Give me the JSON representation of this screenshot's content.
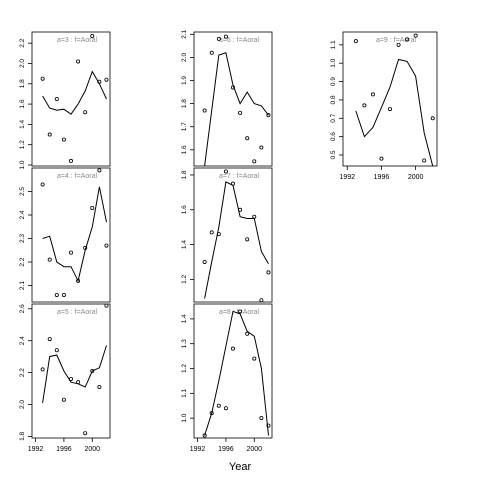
{
  "chart_data": {
    "type": "scatter",
    "xlabel": "Year",
    "x_ticks": [
      "1992",
      "1996",
      "2000"
    ],
    "xlim": [
      1991.5,
      2002.5
    ],
    "panels": [
      {
        "label": "a=3 : f=Aoral",
        "yticks": [
          "1.0",
          "1.2",
          "1.4",
          "1.6",
          "1.8",
          "2.0",
          "2.2"
        ],
        "ylim": [
          0.99,
          2.31
        ],
        "points": [
          [
            1993,
            1.85
          ],
          [
            1994,
            1.3
          ],
          [
            1995,
            1.65
          ],
          [
            1996,
            1.25
          ],
          [
            1997,
            1.04
          ],
          [
            1998,
            2.02
          ],
          [
            1999,
            1.52
          ],
          [
            2000,
            2.27
          ],
          [
            2001,
            1.82
          ],
          [
            2002,
            1.84
          ]
        ],
        "fit": [
          [
            1993,
            1.68
          ],
          [
            1994,
            1.56
          ],
          [
            1995,
            1.54
          ],
          [
            1996,
            1.55
          ],
          [
            1997,
            1.5
          ],
          [
            1998,
            1.6
          ],
          [
            1999,
            1.73
          ],
          [
            2000,
            1.92
          ],
          [
            2001,
            1.8
          ],
          [
            2002,
            1.65
          ]
        ]
      },
      {
        "label": "a=4 : f=Aoral",
        "yticks": [
          "2.1",
          "2.2",
          "2.3",
          "2.4",
          "2.5"
        ],
        "ylim": [
          2.03,
          2.6
        ],
        "points": [
          [
            1993,
            2.53
          ],
          [
            1994,
            2.21
          ],
          [
            1995,
            2.06
          ],
          [
            1996,
            2.06
          ],
          [
            1997,
            2.24
          ],
          [
            1998,
            2.12
          ],
          [
            1999,
            2.26
          ],
          [
            2000,
            2.43
          ],
          [
            2001,
            2.59
          ],
          [
            2002,
            2.27
          ]
        ],
        "fit": [
          [
            1993,
            2.3
          ],
          [
            1994,
            2.31
          ],
          [
            1995,
            2.2
          ],
          [
            1996,
            2.18
          ],
          [
            1997,
            2.18
          ],
          [
            1998,
            2.12
          ],
          [
            1999,
            2.25
          ],
          [
            2000,
            2.35
          ],
          [
            2001,
            2.52
          ],
          [
            2002,
            2.37
          ]
        ]
      },
      {
        "label": "a=5 : f=Aoral",
        "yticks": [
          "1.8",
          "2.0",
          "2.2",
          "2.4",
          "2.6"
        ],
        "ylim": [
          1.79,
          2.63
        ],
        "points": [
          [
            1993,
            2.22
          ],
          [
            1994,
            2.41
          ],
          [
            1995,
            2.34
          ],
          [
            1996,
            2.03
          ],
          [
            1997,
            2.16
          ],
          [
            1998,
            2.14
          ],
          [
            1999,
            1.82
          ],
          [
            2000,
            2.21
          ],
          [
            2001,
            2.11
          ],
          [
            2002,
            2.62
          ]
        ],
        "fit": [
          [
            1993,
            2.01
          ],
          [
            1994,
            2.3
          ],
          [
            1995,
            2.31
          ],
          [
            1996,
            2.21
          ],
          [
            1997,
            2.14
          ],
          [
            1998,
            2.13
          ],
          [
            1999,
            2.11
          ],
          [
            2000,
            2.21
          ],
          [
            2001,
            2.23
          ],
          [
            2002,
            2.37
          ]
        ]
      },
      {
        "label": "a=6 : f=Aoral",
        "yticks": [
          "1.6",
          "1.7",
          "1.8",
          "1.9",
          "2.0",
          "2.1"
        ],
        "ylim": [
          1.53,
          2.11
        ],
        "points": [
          [
            1993,
            1.77
          ],
          [
            1994,
            2.02
          ],
          [
            1995,
            2.08
          ],
          [
            1996,
            2.09
          ],
          [
            1997,
            1.87
          ],
          [
            1998,
            1.76
          ],
          [
            1999,
            1.65
          ],
          [
            2000,
            1.55
          ],
          [
            2001,
            1.61
          ],
          [
            2002,
            1.75
          ]
        ],
        "fit": [
          [
            1993,
            1.53
          ],
          [
            1994,
            1.77
          ],
          [
            1995,
            2.01
          ],
          [
            1996,
            2.02
          ],
          [
            1997,
            1.88
          ],
          [
            1998,
            1.8
          ],
          [
            1999,
            1.85
          ],
          [
            2000,
            1.8
          ],
          [
            2001,
            1.79
          ],
          [
            2002,
            1.75
          ]
        ]
      },
      {
        "label": "a=7 : f=Aoral",
        "yticks": [
          "1.2",
          "1.4",
          "1.6",
          "1.8"
        ],
        "ylim": [
          1.07,
          1.84
        ],
        "points": [
          [
            1993,
            1.3
          ],
          [
            1994,
            1.47
          ],
          [
            1995,
            1.46
          ],
          [
            1996,
            1.82
          ],
          [
            1997,
            1.75
          ],
          [
            1998,
            1.6
          ],
          [
            1999,
            1.43
          ],
          [
            2000,
            1.56
          ],
          [
            2001,
            1.08
          ],
          [
            2002,
            1.24
          ]
        ],
        "fit": [
          [
            1993,
            1.09
          ],
          [
            1994,
            1.3
          ],
          [
            1995,
            1.5
          ],
          [
            1996,
            1.76
          ],
          [
            1997,
            1.74
          ],
          [
            1998,
            1.56
          ],
          [
            1999,
            1.55
          ],
          [
            2000,
            1.55
          ],
          [
            2001,
            1.36
          ],
          [
            2002,
            1.29
          ]
        ]
      },
      {
        "label": "a=8 : f=Aoral",
        "yticks": [
          "1.0",
          "1.1",
          "1.2",
          "1.3",
          "1.4"
        ],
        "ylim": [
          0.92,
          1.46
        ],
        "points": [
          [
            1993,
            0.93
          ],
          [
            1994,
            1.02
          ],
          [
            1995,
            1.05
          ],
          [
            1996,
            1.04
          ],
          [
            1997,
            1.28
          ],
          [
            1998,
            1.43
          ],
          [
            1999,
            1.34
          ],
          [
            2000,
            1.24
          ],
          [
            2001,
            1.0
          ],
          [
            2002,
            0.97
          ]
        ],
        "fit": [
          [
            1993,
            0.93
          ],
          [
            1994,
            1.02
          ],
          [
            1995,
            1.15
          ],
          [
            1996,
            1.29
          ],
          [
            1997,
            1.43
          ],
          [
            1998,
            1.42
          ],
          [
            1999,
            1.35
          ],
          [
            2000,
            1.33
          ],
          [
            2001,
            1.2
          ],
          [
            2002,
            0.93
          ]
        ]
      },
      {
        "label": "a=9 : f=Aoral",
        "yticks": [
          "0.5",
          "0.6",
          "0.7",
          "0.8",
          "0.9",
          "1.0",
          "1.1"
        ],
        "ylim": [
          0.44,
          1.17
        ],
        "points": [
          [
            1993,
            1.12
          ],
          [
            1994,
            0.77
          ],
          [
            1995,
            0.83
          ],
          [
            1996,
            0.48
          ],
          [
            1997,
            0.75
          ],
          [
            1998,
            1.1
          ],
          [
            1999,
            1.13
          ],
          [
            2000,
            1.15
          ],
          [
            2001,
            0.47
          ],
          [
            2002,
            0.7
          ]
        ],
        "fit": [
          [
            1993,
            0.74
          ],
          [
            1994,
            0.6
          ],
          [
            1995,
            0.65
          ],
          [
            1996,
            0.76
          ],
          [
            1997,
            0.87
          ],
          [
            1998,
            1.02
          ],
          [
            1999,
            1.01
          ],
          [
            2000,
            0.93
          ],
          [
            2001,
            0.62
          ],
          [
            2002,
            0.44
          ]
        ]
      }
    ]
  }
}
